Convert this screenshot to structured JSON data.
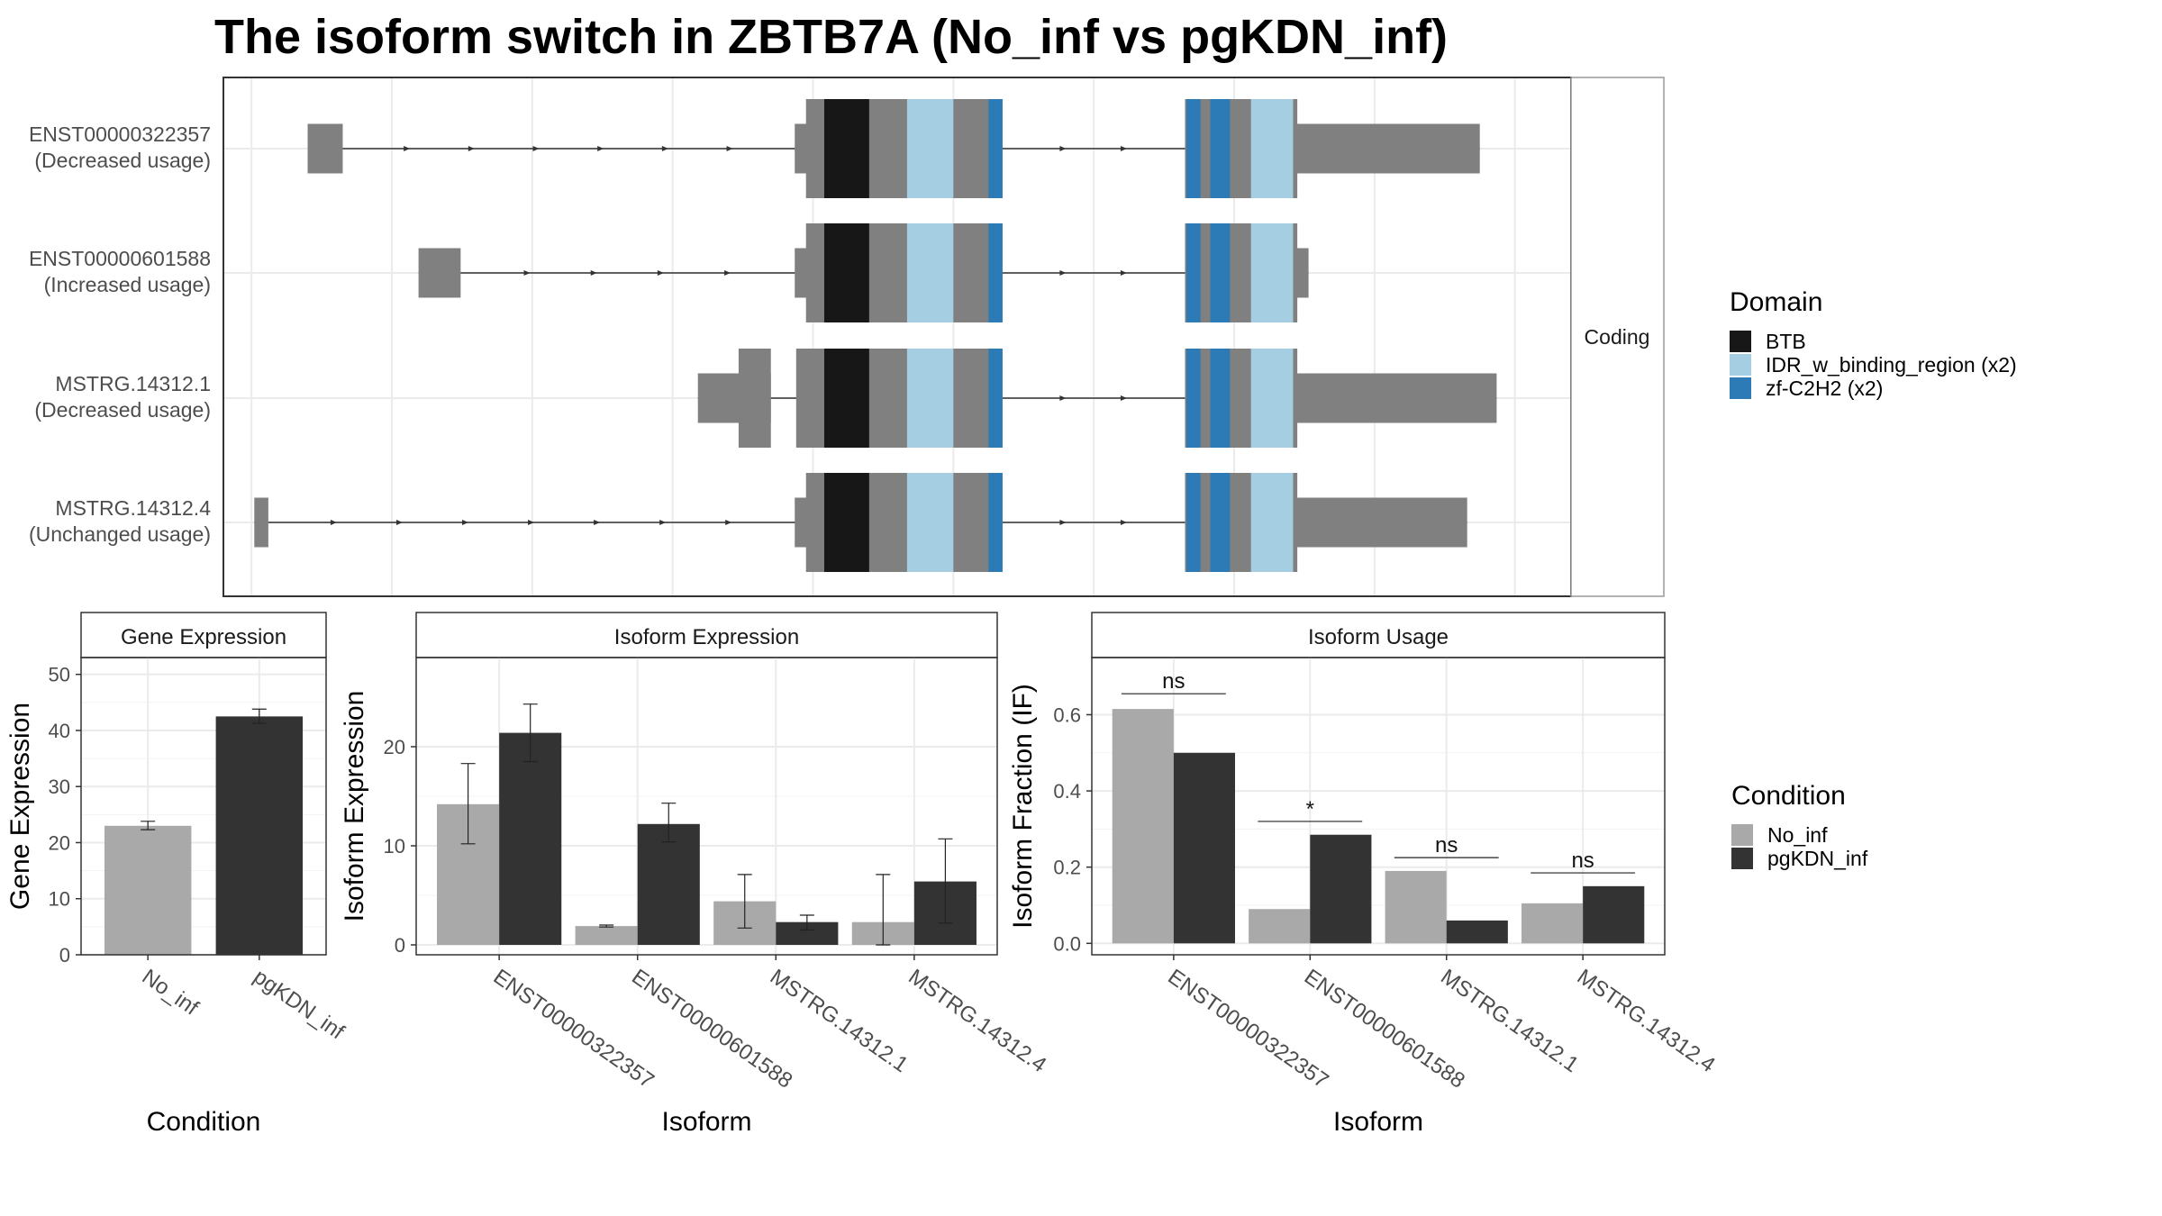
{
  "title": "The isoform switch in ZBTB7A (No_inf vs pgKDN_inf)",
  "colors": {
    "no_inf": "#a9a9a9",
    "pgkdn_inf": "#333333",
    "utr": "#808080",
    "BTB": "#171717",
    "IDR_w_binding_region": "#a6cee3",
    "zf_C2H2": "#2c7bb6",
    "grid": "#ebebeb"
  },
  "legends": {
    "domain": {
      "title": "Domain",
      "items": [
        {
          "label": "BTB",
          "color_key": "BTB"
        },
        {
          "label": "IDR_w_binding_region (x2)",
          "color_key": "IDR_w_binding_region"
        },
        {
          "label": "zf-C2H2 (x2)",
          "color_key": "zf_C2H2"
        }
      ]
    },
    "condition": {
      "title": "Condition",
      "items": [
        {
          "label": "No_inf",
          "color_key": "no_inf"
        },
        {
          "label": "pgKDN_inf",
          "color_key": "pgkdn_inf"
        }
      ]
    }
  },
  "chart_data": [
    {
      "type": "gene_structure",
      "strip_label": "Coding",
      "isoforms": [
        {
          "id": "ENST00000322357",
          "usage": "(Decreased usage)",
          "utr_exons": [
            [
              240,
              265
            ],
            [
              587,
              607
            ],
            [
              935,
              1075
            ]
          ],
          "cds_exons": [
            [
              595,
              735
            ],
            [
              865,
              945
            ]
          ]
        },
        {
          "id": "ENST00000601588",
          "usage": "(Increased usage)",
          "utr_exons": [
            [
              319,
              349
            ],
            [
              587,
              607
            ],
            [
              935,
              953
            ]
          ],
          "cds_exons": [
            [
              595,
              735
            ],
            [
              865,
              945
            ]
          ]
        },
        {
          "id": "MSTRG.14312.1",
          "usage": "(Decreased usage)",
          "utr_exons": [
            [
              518,
              570
            ],
            [
              935,
              1087
            ]
          ],
          "cds_exons": [
            [
              547,
              570
            ],
            [
              588,
              735
            ],
            [
              865,
              945
            ]
          ]
        },
        {
          "id": "MSTRG.14312.4",
          "usage": "(Unchanged usage)",
          "utr_exons": [
            [
              202,
              212
            ],
            [
              587,
              607
            ],
            [
              935,
              1066
            ]
          ],
          "cds_exons": [
            [
              595,
              735
            ],
            [
              865,
              945
            ]
          ]
        }
      ],
      "domains": [
        {
          "name": "BTB",
          "start": 608,
          "end": 640
        },
        {
          "name": "IDR_w_binding_region",
          "start": 667,
          "end": 700
        },
        {
          "name": "zf-C2H2",
          "start": 725,
          "end": 735
        },
        {
          "name": "zf-C2H2",
          "start": 866,
          "end": 876
        },
        {
          "name": "zf-C2H2",
          "start": 883,
          "end": 897
        },
        {
          "name": "IDR_w_binding_region",
          "start": 912,
          "end": 942
        }
      ]
    },
    {
      "type": "bar",
      "strip": "Gene Expression",
      "xlabel": "Condition",
      "ylabel": "Gene Expression",
      "ylim": [
        0,
        53
      ],
      "yticks": [
        0,
        10,
        20,
        30,
        40,
        50
      ],
      "categories": [
        "No_inf",
        "pgKDN_inf"
      ],
      "values": [
        23,
        42.5
      ],
      "errors": [
        [
          22.3,
          23.8
        ],
        [
          41.3,
          43.8
        ]
      ]
    },
    {
      "type": "bar",
      "strip": "Isoform Expression",
      "xlabel": "Isoform",
      "ylabel": "Isoform Expression",
      "ylim": [
        -1,
        29
      ],
      "yticks": [
        0,
        10,
        20
      ],
      "categories": [
        "ENST00000322357",
        "ENST00000601588",
        "MSTRG.14312.1",
        "MSTRG.14312.4"
      ],
      "series": [
        {
          "name": "No_inf",
          "values": [
            14.2,
            1.9,
            4.4,
            2.3
          ],
          "errors": [
            [
              10.2,
              18.3
            ],
            [
              1.8,
              2.0
            ],
            [
              1.7,
              7.1
            ],
            [
              0,
              7.1
            ]
          ]
        },
        {
          "name": "pgKDN_inf",
          "values": [
            21.4,
            12.2,
            2.3,
            6.4
          ],
          "errors": [
            [
              18.5,
              24.3
            ],
            [
              10.4,
              14.3
            ],
            [
              1.5,
              3.0
            ],
            [
              2.2,
              10.7
            ]
          ]
        }
      ]
    },
    {
      "type": "bar",
      "strip": "Isoform Usage",
      "xlabel": "Isoform",
      "ylabel": "Isoform Fraction (IF)",
      "ylim": [
        -0.03,
        0.75
      ],
      "yticks": [
        "0.0",
        "0.2",
        "0.4",
        "0.6"
      ],
      "categories": [
        "ENST00000322357",
        "ENST00000601588",
        "MSTRG.14312.1",
        "MSTRG.14312.4"
      ],
      "series": [
        {
          "name": "No_inf",
          "values": [
            0.615,
            0.09,
            0.19,
            0.105
          ]
        },
        {
          "name": "pgKDN_inf",
          "values": [
            0.5,
            0.285,
            0.06,
            0.15
          ]
        }
      ],
      "significance": [
        {
          "label": "ns",
          "y": 0.655
        },
        {
          "label": "*",
          "y": 0.32
        },
        {
          "label": "ns",
          "y": 0.225
        },
        {
          "label": "ns",
          "y": 0.185
        }
      ]
    }
  ]
}
